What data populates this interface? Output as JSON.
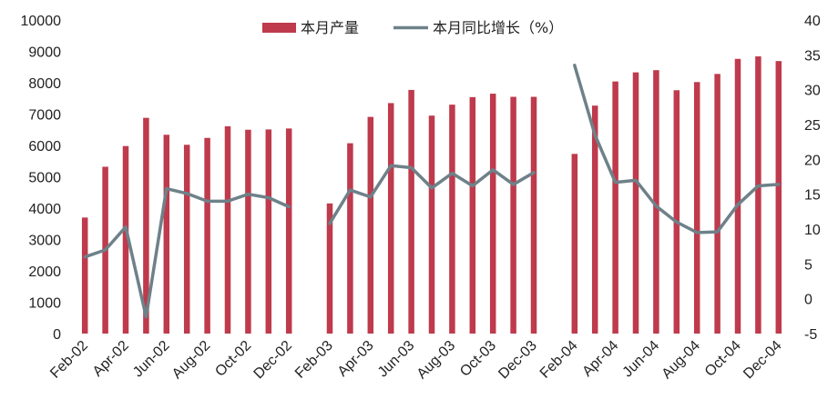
{
  "chart_data": {
    "type": "bar",
    "categories": [
      "Feb-02",
      "Mar-02",
      "Apr-02",
      "May-02",
      "Jun-02",
      "Jul-02",
      "Aug-02",
      "Sep-02",
      "Oct-02",
      "Nov-02",
      "Dec-02",
      "Jan-03",
      "Feb-03",
      "Mar-03",
      "Apr-03",
      "May-03",
      "Jun-03",
      "Jul-03",
      "Aug-03",
      "Sep-03",
      "Oct-03",
      "Nov-03",
      "Dec-03",
      "Jan-04",
      "Feb-04",
      "Mar-04",
      "Apr-04",
      "May-04",
      "Jun-04",
      "Jul-04",
      "Aug-04",
      "Sep-04",
      "Oct-04",
      "Nov-04",
      "Dec-04"
    ],
    "x_tick_labels": [
      "Feb-02",
      "Apr-02",
      "Jun-02",
      "Aug-02",
      "Oct-02",
      "Dec-02",
      "Feb-03",
      "Apr-03",
      "Jun-03",
      "Aug-03",
      "Oct-03",
      "Dec-03",
      "Feb-04",
      "Apr-04",
      "Jun-04",
      "Aug-04",
      "Oct-04",
      "Dec-04"
    ],
    "series": [
      {
        "name": "本月产量",
        "type": "bar",
        "axis": "left",
        "color": "#be3a4c",
        "values": [
          3700,
          5320,
          5980,
          6880,
          6340,
          6020,
          6240,
          6610,
          6500,
          6510,
          6540,
          null,
          4150,
          6070,
          6910,
          7350,
          7770,
          6950,
          7300,
          7540,
          7650,
          7550,
          7550,
          null,
          5730,
          7270,
          8040,
          8330,
          8400,
          7760,
          8020,
          8280,
          8760,
          8840,
          8690
        ]
      },
      {
        "name": "本月同比增长（%）",
        "type": "line",
        "axis": "right",
        "color": "#6e8189",
        "values": [
          6.0,
          7.0,
          10.3,
          -2.6,
          15.8,
          15.1,
          14.0,
          14.0,
          15.0,
          14.5,
          13.2,
          null,
          10.8,
          15.6,
          14.6,
          19.1,
          18.8,
          15.9,
          18.0,
          16.2,
          18.5,
          16.4,
          18.1,
          null,
          33.5,
          23.5,
          16.7,
          17.0,
          13.3,
          11.0,
          9.5,
          9.6,
          13.5,
          16.2,
          16.4
        ]
      }
    ],
    "y_left": {
      "min": 0,
      "max": 10000,
      "step": 1000
    },
    "y_right": {
      "min": -5,
      "max": 40,
      "step": 5
    },
    "legend_position": "top-center",
    "grid": false
  }
}
